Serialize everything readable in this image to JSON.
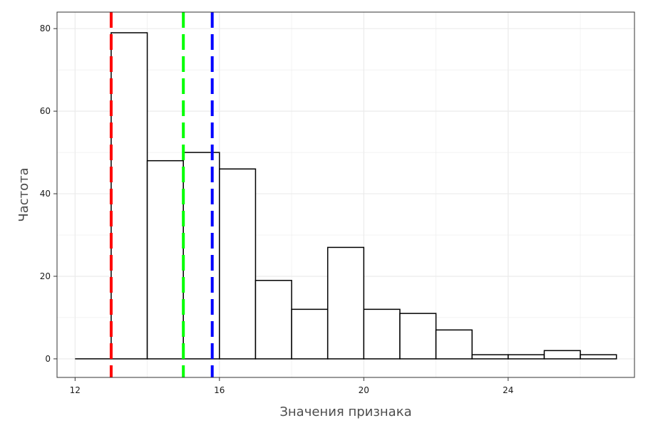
{
  "chart_data": {
    "type": "bar",
    "bin_edges": [
      13,
      14,
      15,
      16,
      17,
      18,
      19,
      20,
      21,
      22,
      23,
      24,
      25,
      26,
      27
    ],
    "values": [
      79,
      48,
      50,
      46,
      19,
      12,
      27,
      12,
      11,
      7,
      1,
      1,
      2,
      1
    ],
    "xlabel": "Значения признака",
    "ylabel": "Частота",
    "xlim": [
      11.5,
      27.5
    ],
    "ylim": [
      -4.5,
      84
    ],
    "x_ticks": [
      12,
      16,
      20,
      24
    ],
    "y_ticks": [
      0,
      20,
      40,
      60,
      80
    ],
    "grid": true,
    "vlines": [
      {
        "x": 13,
        "color": "#ff0000"
      },
      {
        "x": 15,
        "color": "#00ff00"
      },
      {
        "x": 15.8,
        "color": "#0000ff"
      }
    ],
    "baseline_segment": [
      12,
      13
    ]
  },
  "colors": {
    "bar_fill": "#ffffff",
    "bar_stroke": "#000000",
    "grid": "#ebebeb",
    "panel_border": "#333333"
  }
}
